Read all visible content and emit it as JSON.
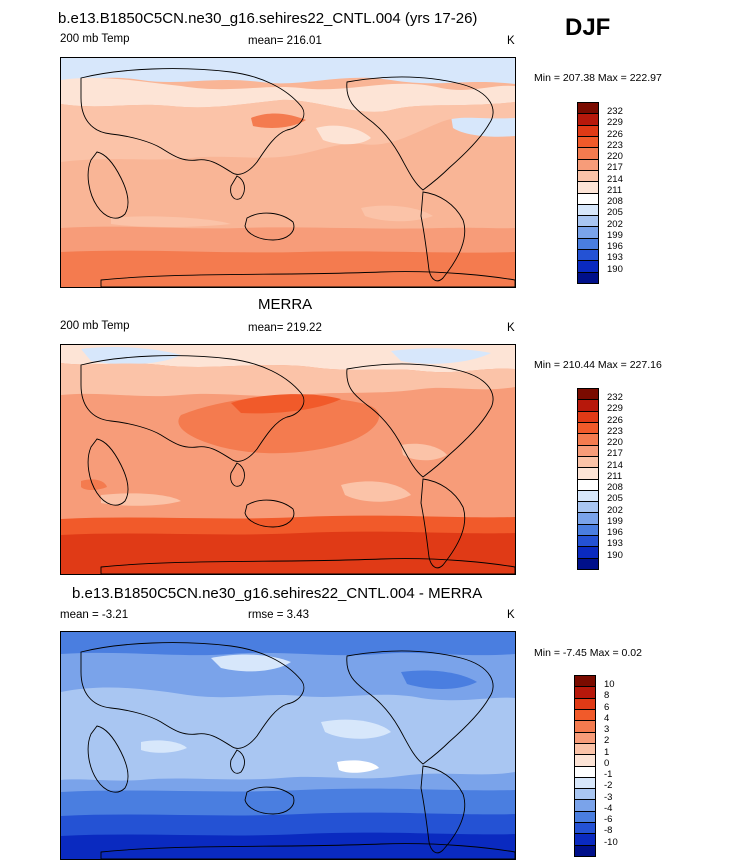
{
  "season": "DJF",
  "panels": [
    {
      "title": "b.e13.B1850C5CN.ne30_g16.sehires22_CNTL.004 (yrs 17-26)",
      "left_label": "200 mb Temp",
      "mean_label": "mean= 216.01",
      "units": "K",
      "minmax": "Min = 207.38 Max = 222.97",
      "colorbar_labels": [
        "232",
        "229",
        "226",
        "223",
        "220",
        "217",
        "214",
        "211",
        "208",
        "205",
        "202",
        "199",
        "196",
        "193",
        "190"
      ],
      "colorbar_colors": [
        "#7a0b00",
        "#b7180b",
        "#e03a16",
        "#f15a2a",
        "#f47b4f",
        "#f79c79",
        "#fbc3a8",
        "#fde4d6",
        "#ffffff",
        "#d7e7fb",
        "#a9c6f2",
        "#7aa3ea",
        "#4a7ee0",
        "#2452d4",
        "#0a2ac0",
        "#00108a"
      ]
    },
    {
      "title": "MERRA",
      "left_label": "200 mb Temp",
      "mean_label": "mean= 219.22",
      "units": "K",
      "minmax": "Min = 210.44 Max = 227.16",
      "colorbar_labels": [
        "232",
        "229",
        "226",
        "223",
        "220",
        "217",
        "214",
        "211",
        "208",
        "205",
        "202",
        "199",
        "196",
        "193",
        "190"
      ],
      "colorbar_colors": [
        "#7a0b00",
        "#b7180b",
        "#e03a16",
        "#f15a2a",
        "#f47b4f",
        "#f79c79",
        "#fbc3a8",
        "#fde4d6",
        "#ffffff",
        "#d7e7fb",
        "#a9c6f2",
        "#7aa3ea",
        "#4a7ee0",
        "#2452d4",
        "#0a2ac0",
        "#00108a"
      ]
    },
    {
      "title": "b.e13.B1850C5CN.ne30_g16.sehires22_CNTL.004 - MERRA",
      "left_label": "mean =  -3.21",
      "mean_label": "rmse =   3.43",
      "units": "K",
      "minmax": "Min =  -7.45 Max =   0.02",
      "colorbar_labels": [
        "10",
        "8",
        "6",
        "4",
        "3",
        "2",
        "1",
        "0",
        "-1",
        "-2",
        "-3",
        "-4",
        "-6",
        "-8",
        "-10"
      ],
      "colorbar_colors": [
        "#7a0b00",
        "#b7180b",
        "#e03a16",
        "#f15a2a",
        "#f47b4f",
        "#f79c79",
        "#fbc3a8",
        "#fde4d6",
        "#ffffff",
        "#d7e7fb",
        "#a9c6f2",
        "#7aa3ea",
        "#4a7ee0",
        "#2452d4",
        "#0a2ac0",
        "#00108a"
      ]
    }
  ]
}
